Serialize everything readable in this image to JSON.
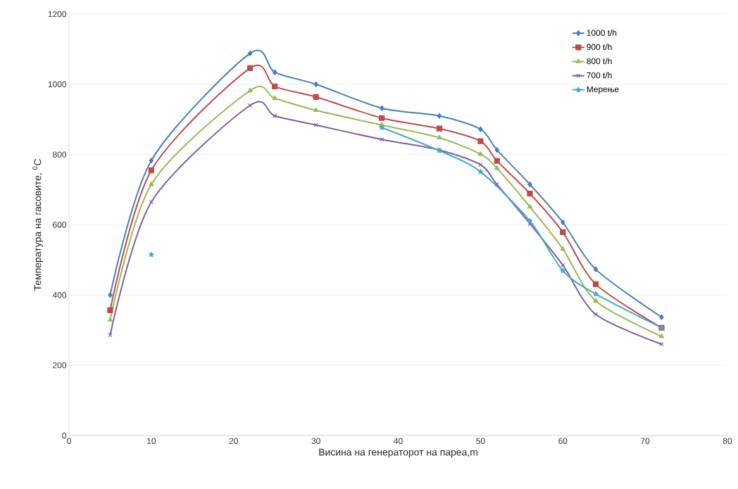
{
  "chart_data": {
    "type": "line",
    "xlabel": "Висина на генераторот на пареа,m",
    "ylabel": "Температура на гасовите, $^{0}$C",
    "x": [
      5,
      10,
      22,
      25,
      30,
      38,
      45,
      50,
      52,
      56,
      60,
      64,
      72
    ],
    "series": [
      {
        "name": "1000 t/h",
        "color": "#4a7ebb",
        "marker": "diamond",
        "values": [
          400,
          783,
          1088,
          1034,
          1000,
          932,
          910,
          872,
          813,
          715,
          607,
          473,
          337
        ]
      },
      {
        "name": "900 t/h",
        "color": "#be4b48",
        "marker": "square",
        "values": [
          357,
          755,
          1046,
          994,
          964,
          904,
          874,
          838,
          782,
          689,
          579,
          431,
          307
        ]
      },
      {
        "name": "800 t/h",
        "color": "#98b954",
        "marker": "triangle",
        "values": [
          329,
          715,
          982,
          960,
          926,
          884,
          848,
          801,
          761,
          651,
          531,
          383,
          282
        ]
      },
      {
        "name": "700 t/h",
        "color": "#7d60a0",
        "marker": "cross",
        "values": [
          286,
          665,
          940,
          910,
          884,
          843,
          813,
          771,
          715,
          603,
          485,
          345,
          260
        ]
      },
      {
        "name": "Мерење",
        "color": "#46aac5",
        "marker": "star",
        "x": [
          10,
          22,
          38,
          45,
          50,
          56,
          60,
          64,
          72
        ],
        "values": [
          515,
          null,
          877,
          811,
          751,
          611,
          469,
          403,
          307
        ]
      }
    ],
    "xlim": [
      0,
      80
    ],
    "xticks": [
      0,
      10,
      20,
      30,
      40,
      50,
      60,
      70,
      80
    ],
    "ylim": [
      0,
      1200
    ],
    "yticks": [
      0,
      200,
      400,
      600,
      800,
      1000,
      1200
    ],
    "grid": "y",
    "legend": "top right"
  }
}
